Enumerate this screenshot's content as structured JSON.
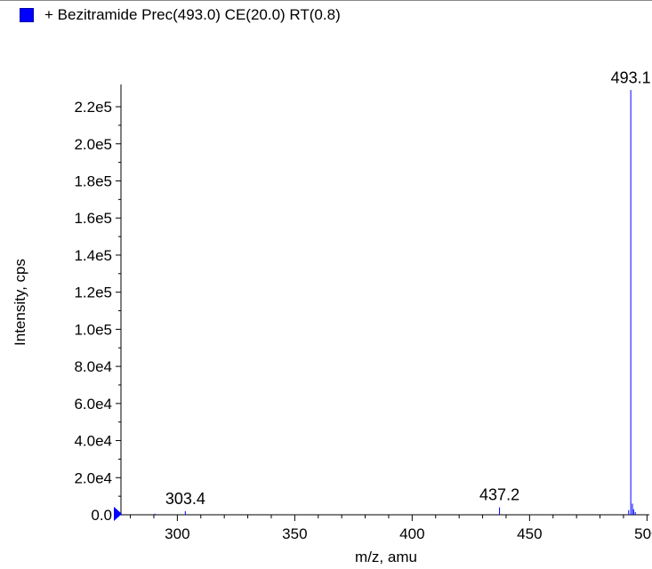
{
  "legend": {
    "text": "+ Bezitramide Prec(493.0) CE(20.0) RT(0.8)",
    "swatch_color": "#0000ff"
  },
  "chart_data": {
    "type": "bar",
    "title": "",
    "xlabel": "m/z, amu",
    "ylabel": "Intensity, cps",
    "xlim": [
      276,
      501
    ],
    "ylim": [
      0,
      232000
    ],
    "x_ticks": [
      300,
      350,
      400,
      450,
      500
    ],
    "x_tick_labels": [
      "300",
      "350",
      "400",
      "450",
      "500"
    ],
    "y_ticks": [
      0,
      20000,
      40000,
      60000,
      80000,
      100000,
      120000,
      140000,
      160000,
      180000,
      200000,
      220000
    ],
    "y_tick_labels": [
      "0.0",
      "2.0e4",
      "4.0e4",
      "6.0e4",
      "8.0e4",
      "1.0e5",
      "1.2e5",
      "1.4e5",
      "1.6e5",
      "1.8e5",
      "2.0e5",
      "2.2e5"
    ],
    "series_color": "#0000ff",
    "grid": false,
    "peaks": [
      {
        "x": 290.5,
        "y": 600
      },
      {
        "x": 303.4,
        "y": 2000
      },
      {
        "x": 437.2,
        "y": 4000
      },
      {
        "x": 492.2,
        "y": 2500
      },
      {
        "x": 493.1,
        "y": 229000
      },
      {
        "x": 493.8,
        "y": 6000
      },
      {
        "x": 494.3,
        "y": 3000
      },
      {
        "x": 495.0,
        "y": 1500
      }
    ],
    "peak_labels": [
      {
        "x": 303.4,
        "text": "303.4"
      },
      {
        "x": 437.2,
        "text": "437.2"
      },
      {
        "x": 493.1,
        "text": "493.1"
      }
    ]
  }
}
